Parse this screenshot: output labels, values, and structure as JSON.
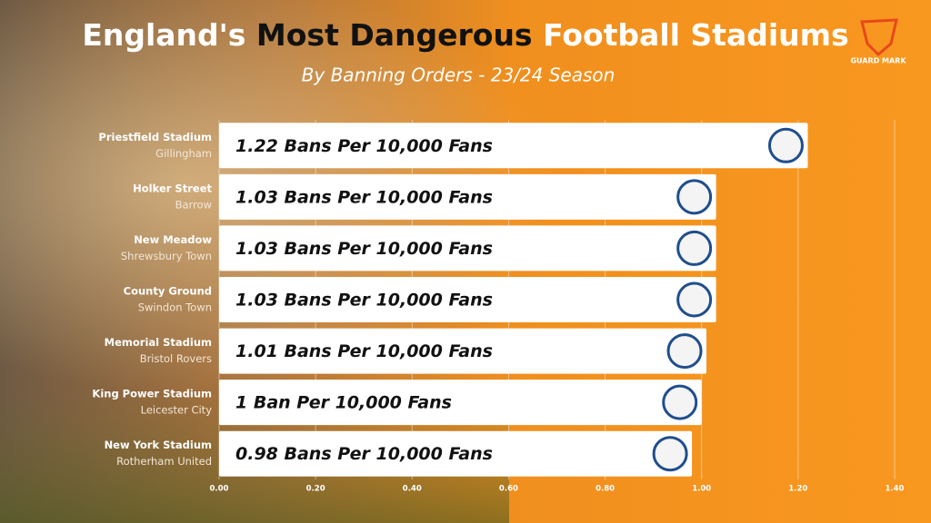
{
  "brand": "GUARD MARK",
  "chart_data": {
    "type": "bar",
    "orientation": "horizontal",
    "title_parts": [
      "England's",
      "Most Dangerous",
      "Football Stadiums"
    ],
    "title_colors": [
      "#ffffff",
      "#111111",
      "#ffffff"
    ],
    "subtitle": "By Banning Orders - 23/24 Season",
    "categories": [
      "Priestfield Stadium",
      "Holker Street",
      "New Meadow",
      "County Ground",
      "Memorial Stadium",
      "King Power Stadium",
      "New York Stadium"
    ],
    "subcategories": [
      "Gillingham",
      "Barrow",
      "Shrewsbury Town",
      "Swindon Town",
      "Bristol Rovers",
      "Leicester City",
      "Rotherham United"
    ],
    "values": [
      1.22,
      1.03,
      1.03,
      1.03,
      1.01,
      1.0,
      0.98
    ],
    "value_labels": [
      "1.22 Bans Per 10,000 Fans",
      "1.03 Bans Per 10,000 Fans",
      "1.03 Bans Per 10,000 Fans",
      "1.03 Bans Per 10,000 Fans",
      "1.01 Bans Per 10,000 Fans",
      "1 Ban Per 10,000 Fans",
      "0.98 Bans Per 10,000 Fans"
    ],
    "color": "#ffffff",
    "xlim": [
      0,
      1.4
    ],
    "xticks": [
      {
        "value": 0,
        "label": "0.00"
      },
      {
        "value": 0.2,
        "label": "0.20"
      },
      {
        "value": 0.4,
        "label": "0.40"
      },
      {
        "value": 0.6,
        "label": "0.60"
      },
      {
        "value": 0.8,
        "label": "0.80"
      },
      {
        "value": 1,
        "label": "1.00"
      },
      {
        "value": 1.2,
        "label": "1.20"
      },
      {
        "value": 1.4,
        "label": "1.40"
      }
    ],
    "grid": true
  }
}
